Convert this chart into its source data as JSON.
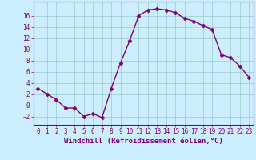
{
  "x": [
    0,
    1,
    2,
    3,
    4,
    5,
    6,
    7,
    8,
    9,
    10,
    11,
    12,
    13,
    14,
    15,
    16,
    17,
    18,
    19,
    20,
    21,
    22,
    23
  ],
  "y": [
    3,
    2,
    1,
    -0.5,
    -0.5,
    -2,
    -1.5,
    -2.2,
    3,
    7.5,
    11.5,
    16,
    17,
    17.2,
    17,
    16.5,
    15.5,
    15,
    14.2,
    13.5,
    9,
    8.5,
    7,
    5
  ],
  "line_color": "#800080",
  "marker": "D",
  "markersize": 2.5,
  "linewidth": 1.0,
  "bg_color": "#cceeff",
  "grid_color": "#99cccc",
  "xlabel": "Windchill (Refroidissement éolien,°C)",
  "xlabel_fontsize": 6.5,
  "tick_fontsize": 5.5,
  "ylim": [
    -3.5,
    18.5
  ],
  "xlim": [
    -0.5,
    23.5
  ],
  "yticks": [
    -2,
    0,
    2,
    4,
    6,
    8,
    10,
    12,
    14,
    16
  ],
  "xticks": [
    0,
    1,
    2,
    3,
    4,
    5,
    6,
    7,
    8,
    9,
    10,
    11,
    12,
    13,
    14,
    15,
    16,
    17,
    18,
    19,
    20,
    21,
    22,
    23
  ]
}
